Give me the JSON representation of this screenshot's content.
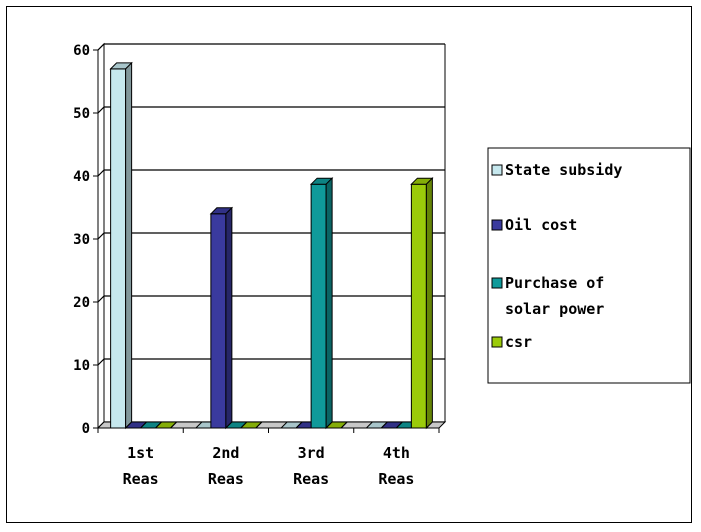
{
  "chart_data": {
    "type": "bar",
    "title": "",
    "xlabel": "",
    "ylabel": "",
    "ylim": [
      0,
      60
    ],
    "yticks": [
      0,
      10,
      20,
      30,
      40,
      50,
      60
    ],
    "grid": true,
    "three_d": true,
    "legend_position": "right",
    "categories": [
      [
        "1st",
        "Reas"
      ],
      [
        "2nd",
        "Reas"
      ],
      [
        "3rd",
        "Reas"
      ],
      [
        "4th",
        "Reas"
      ]
    ],
    "series": [
      {
        "name": "State subsidy",
        "legend_lines": [
          "State subsidy"
        ],
        "color": "#C6E8EE",
        "values": [
          57,
          0,
          0,
          0
        ]
      },
      {
        "name": "Oil cost",
        "legend_lines": [
          "Oil cost"
        ],
        "color": "#3A3A9E",
        "values": [
          0,
          34,
          0,
          0
        ]
      },
      {
        "name": "Purchase of solar power",
        "legend_lines": [
          "Purchase of",
          "solar power"
        ],
        "color": "#0F9A9A",
        "values": [
          0,
          0,
          38.7,
          0
        ]
      },
      {
        "name": "csr",
        "legend_lines": [
          "csr"
        ],
        "color": "#9BCB0A",
        "values": [
          0,
          0,
          0,
          38.7
        ]
      }
    ]
  }
}
